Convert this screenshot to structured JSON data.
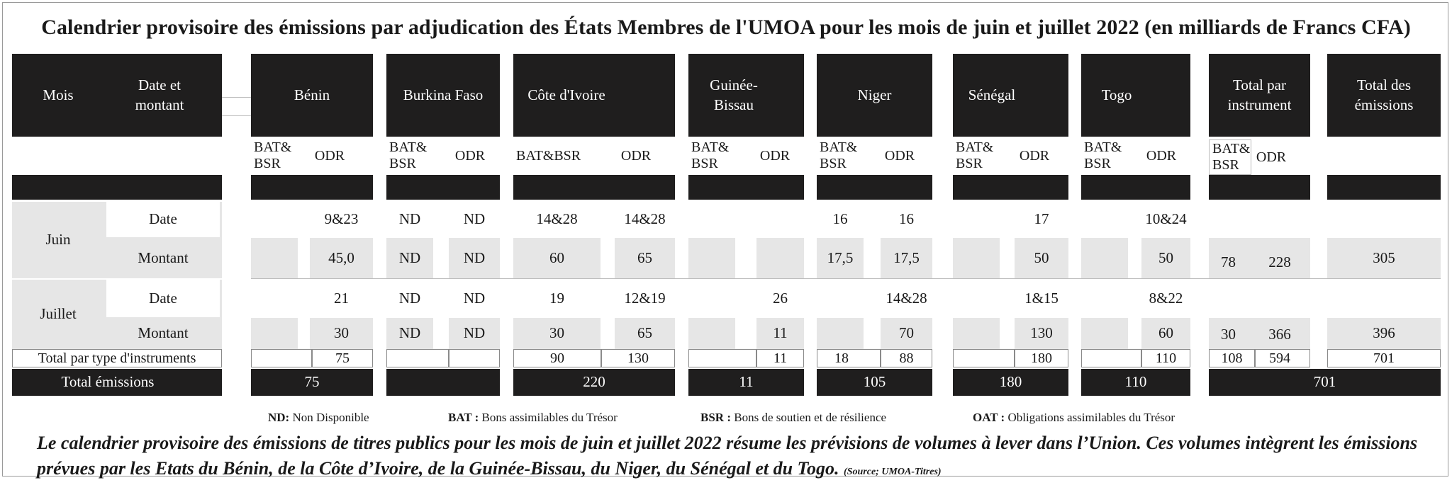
{
  "title": "Calendrier provisoire  des émissions par adjudication des États Membres de l'UMOA pour les mois de juin et juillet 2022 (en milliards de Francs CFA)",
  "headers": {
    "mois": "Mois",
    "date_montant": "Date et montant",
    "benin": "Bénin",
    "burkina": "Burkina Faso",
    "cote_ivoire": "Côte d'Ivoire",
    "guinee_bissau": "Guinée-Bissau",
    "niger": "Niger",
    "senegal": "Sénégal",
    "togo": "Togo",
    "total_instrument": "Total par instrument",
    "total_emissions": "Total des émissions"
  },
  "subheaders": {
    "bat_bsr": "BAT& BSR",
    "bat_bsr_ci": "BAT&BSR",
    "odr": "ODR"
  },
  "rows": {
    "juin": "Juin",
    "juillet": "Juillet",
    "date": "Date",
    "montant": "Montant",
    "total_type": "Total par type d'instruments",
    "total_emissions": "Total émissions"
  },
  "values": {
    "juin_date": {
      "benin_odr": "9&23",
      "bf_bat": "ND",
      "bf_odr": "ND",
      "ci_bat": "14&28",
      "ci_odr": "14&28",
      "ni_bat": "16",
      "ni_odr": "16",
      "sn_odr": "17",
      "tg_odr": "10&24"
    },
    "juin_montant": {
      "benin_odr": "45,0",
      "bf_bat": "ND",
      "bf_odr": "ND",
      "ci_bat": "60",
      "ci_odr": "65",
      "ni_bat": "17,5",
      "ni_odr": "17,5",
      "sn_odr": "50",
      "tg_odr": "50",
      "tot_bat": "78",
      "tot_odr": "228",
      "total": "305"
    },
    "juil_date": {
      "benin_odr": "21",
      "bf_bat": "ND",
      "bf_odr": "ND",
      "ci_bat": "19",
      "ci_odr": "12&19",
      "gb_odr": "26",
      "ni_odr": "14&28",
      "sn_odr": "1&15",
      "tg_odr": "8&22"
    },
    "juil_montant": {
      "benin_odr": "30",
      "bf_bat": "ND",
      "bf_odr": "ND",
      "ci_bat": "30",
      "ci_odr": "65",
      "gb_odr": "11",
      "ni_odr": "70",
      "sn_odr": "130",
      "tg_odr": "60",
      "tot_bat": "30",
      "tot_odr": "366",
      "total": "396"
    },
    "total_type": {
      "benin_odr": "75",
      "ci_bat": "90",
      "ci_odr": "130",
      "gb_odr": "11",
      "ni_bat": "18",
      "ni_odr": "88",
      "sn_odr": "180",
      "tg_odr": "110",
      "tot_bat": "108",
      "tot_odr": "594",
      "total": "701"
    },
    "total_emissions": {
      "benin": "75",
      "ci": "220",
      "gb": "11",
      "ni": "105",
      "sn": "180",
      "tg": "110",
      "total": "701"
    }
  },
  "legend": {
    "nd_key": "ND:",
    "nd_text": " Non Disponible",
    "bat_key": "BAT :",
    "bat_text": " Bons assimilables du Trésor",
    "bsr_key": "BSR :",
    "bsr_text": " Bons de soutien et de résilience",
    "oat_key": "OAT :",
    "oat_text": " Obligations assimilables du Trésor"
  },
  "footer": {
    "text": "Le calendrier provisoire des émissions de titres publics pour les mois de juin et juillet 2022 résume les prévisions de volumes à lever dans l’Union. Ces volumes intègrent les émissions prévues par les Etats du Bénin, de la Côte d’Ivoire, de la Guinée-Bissau, du Niger, du Sénégal et du Togo.",
    "source": "(Source; UMOA-Titres)"
  },
  "colors": {
    "header_black": "#1f1e1e",
    "row_gray": "#e6e6e6"
  }
}
